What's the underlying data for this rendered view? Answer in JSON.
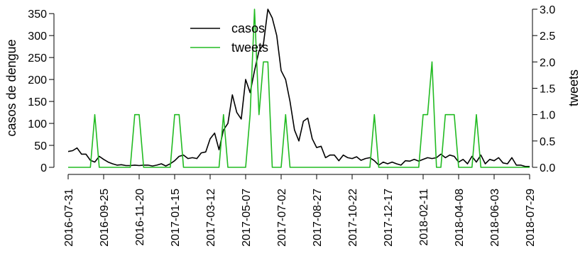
{
  "chart_data": {
    "type": "line",
    "ylabel": "casos de dengue",
    "ylabel_right": "tweets",
    "ylim": [
      0,
      360
    ],
    "ylim_right": [
      0,
      3.0
    ],
    "yticks": [
      0,
      50,
      100,
      150,
      200,
      250,
      300,
      350
    ],
    "yticks_right": [
      "0.0",
      "0.5",
      "1.0",
      "1.5",
      "2.0",
      "2.5",
      "3.0"
    ],
    "xtick_labels": [
      "2016-07-31",
      "2016-09-25",
      "2016-11-20",
      "2017-01-15",
      "2017-03-12",
      "2017-05-07",
      "2017-07-02",
      "2017-08-27",
      "2017-10-22",
      "2017-12-17",
      "2018-02-11",
      "2018-04-08",
      "2018-06-03",
      "2018-07-29"
    ],
    "xtick_weeks": [
      0,
      8,
      16,
      24,
      32,
      40,
      48,
      56,
      64,
      72,
      80,
      88,
      96,
      104
    ],
    "x_week_range": [
      0,
      104
    ],
    "legend_position": "top-center",
    "grid": false,
    "series": [
      {
        "name": "casos",
        "axis": "left",
        "color": "#000000",
        "x": [
          0,
          1,
          2,
          3,
          4,
          5,
          6,
          7,
          8,
          9,
          10,
          11,
          12,
          13,
          14,
          15,
          16,
          17,
          18,
          19,
          20,
          21,
          22,
          23,
          24,
          25,
          26,
          27,
          28,
          29,
          30,
          31,
          32,
          33,
          34,
          35,
          36,
          37,
          38,
          39,
          40,
          41,
          42,
          43,
          44,
          45,
          46,
          47,
          48,
          49,
          50,
          51,
          52,
          53,
          54,
          55,
          56,
          57,
          58,
          59,
          60,
          61,
          62,
          63,
          64,
          65,
          66,
          67,
          68,
          69,
          70,
          71,
          72,
          73,
          74,
          75,
          76,
          77,
          78,
          79,
          80,
          81,
          82,
          83,
          84,
          85,
          86,
          87,
          88,
          89,
          90,
          91,
          92,
          93,
          94,
          95,
          96,
          97,
          98,
          99,
          100,
          101,
          102,
          103,
          104
        ],
        "values": [
          36,
          38,
          44,
          30,
          30,
          16,
          12,
          25,
          18,
          12,
          8,
          5,
          6,
          4,
          4,
          5,
          4,
          5,
          5,
          3,
          5,
          8,
          3,
          8,
          15,
          25,
          28,
          20,
          22,
          20,
          33,
          35,
          65,
          78,
          40,
          85,
          100,
          165,
          125,
          110,
          200,
          170,
          220,
          265,
          280,
          360,
          340,
          300,
          220,
          200,
          150,
          85,
          60,
          105,
          112,
          65,
          45,
          48,
          22,
          28,
          28,
          15,
          28,
          22,
          20,
          24,
          16,
          20,
          22,
          15,
          5,
          12,
          8,
          12,
          8,
          5,
          15,
          14,
          18,
          14,
          18,
          22,
          20,
          22,
          30,
          22,
          28,
          25,
          12,
          18,
          8,
          25,
          12,
          28,
          8,
          18,
          15,
          22,
          10,
          8,
          22,
          5,
          5,
          2,
          2
        ]
      },
      {
        "name": "tweets",
        "axis": "right",
        "color": "#22bb22",
        "x": [
          0,
          1,
          2,
          3,
          4,
          5,
          6,
          7,
          8,
          9,
          10,
          11,
          12,
          13,
          14,
          15,
          16,
          17,
          18,
          19,
          20,
          21,
          22,
          23,
          24,
          25,
          26,
          27,
          28,
          29,
          30,
          31,
          32,
          33,
          34,
          35,
          36,
          37,
          38,
          39,
          40,
          41,
          42,
          43,
          44,
          45,
          46,
          47,
          48,
          49,
          50,
          51,
          52,
          53,
          54,
          55,
          56,
          57,
          58,
          59,
          60,
          61,
          62,
          63,
          64,
          65,
          66,
          67,
          68,
          69,
          70,
          71,
          72,
          73,
          74,
          75,
          76,
          77,
          78,
          79,
          80,
          81,
          82,
          83,
          84,
          85,
          86,
          87,
          88,
          89,
          90,
          91,
          92,
          93,
          94,
          95,
          96,
          97,
          98,
          99,
          100,
          101,
          102,
          103,
          104
        ],
        "values": [
          0,
          0,
          0,
          0,
          0,
          0,
          1,
          0,
          0,
          0,
          0,
          0,
          0,
          0,
          0,
          1,
          1,
          0,
          0,
          0,
          0,
          0,
          0,
          0,
          1,
          1,
          0,
          0,
          0,
          0,
          0,
          0,
          0,
          0,
          0,
          1,
          0,
          0,
          0,
          0,
          0,
          1,
          3,
          1,
          2,
          2,
          0,
          0,
          0,
          1,
          0,
          0,
          0,
          0,
          0,
          0,
          0,
          0,
          0,
          0,
          0,
          0,
          0,
          0,
          0,
          0,
          0,
          0,
          0,
          1,
          0,
          0,
          0,
          0,
          0,
          0,
          0,
          0,
          0,
          0,
          1,
          1,
          2,
          0,
          0,
          1,
          1,
          1,
          0,
          0,
          0,
          0,
          1,
          0,
          0,
          0,
          0,
          0,
          0,
          0,
          0,
          0,
          0,
          0,
          0
        ]
      }
    ]
  }
}
